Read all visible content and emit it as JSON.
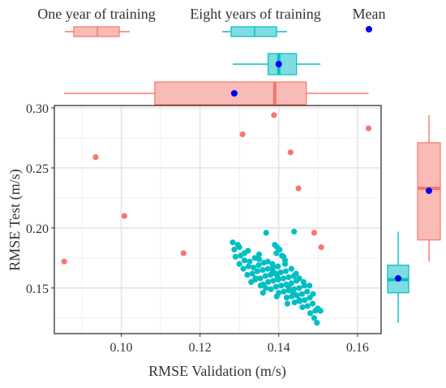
{
  "chart_data": {
    "type": "scatter",
    "xlabel": "RMSE Validation (m/s)",
    "ylabel": "RMSE Test (m/s)",
    "xlim": [
      0.083,
      0.166
    ],
    "ylim": [
      0.112,
      0.302
    ],
    "x_ticks": [
      0.1,
      0.12,
      0.14,
      0.16
    ],
    "x_tick_labels": [
      "0.10",
      "0.12",
      "0.14",
      "0.16"
    ],
    "y_ticks": [
      0.15,
      0.2,
      0.25,
      0.3
    ],
    "y_tick_labels": [
      "0.15",
      "0.20",
      "0.25",
      "0.30"
    ],
    "grid": true,
    "legend_position": "top",
    "legend": [
      {
        "label": "One year of training",
        "kind": "box"
      },
      {
        "label": "Eight years of training",
        "kind": "box"
      },
      {
        "label": "Mean",
        "kind": "point"
      }
    ],
    "colors": {
      "one_year": "#F8766D",
      "eight_years": "#00BFC4",
      "mean": "#0000EE"
    },
    "series": [
      {
        "name": "One year of training",
        "points": [
          [
            0.0855,
            0.172
          ],
          [
            0.0935,
            0.259
          ],
          [
            0.1008,
            0.21
          ],
          [
            0.1158,
            0.179
          ],
          [
            0.1308,
            0.278
          ],
          [
            0.1388,
            0.294
          ],
          [
            0.143,
            0.263
          ],
          [
            0.145,
            0.233
          ],
          [
            0.149,
            0.196
          ],
          [
            0.1508,
            0.184
          ],
          [
            0.1628,
            0.283
          ]
        ],
        "x_box": {
          "min": 0.0855,
          "q1": 0.1085,
          "median": 0.139,
          "q3": 0.147,
          "max": 0.1628,
          "mean": 0.1287
        },
        "y_box": {
          "min": 0.172,
          "q1": 0.19,
          "median": 0.233,
          "q3": 0.271,
          "max": 0.294,
          "mean": 0.231
        }
      },
      {
        "name": "Eight years of training",
        "points": [
          [
            0.1283,
            0.188
          ],
          [
            0.1296,
            0.186
          ],
          [
            0.1287,
            0.182
          ],
          [
            0.13,
            0.184
          ],
          [
            0.129,
            0.176
          ],
          [
            0.1303,
            0.177
          ],
          [
            0.1313,
            0.179
          ],
          [
            0.1322,
            0.181
          ],
          [
            0.13,
            0.17
          ],
          [
            0.1313,
            0.173
          ],
          [
            0.1326,
            0.172
          ],
          [
            0.1339,
            0.175
          ],
          [
            0.135,
            0.174
          ],
          [
            0.131,
            0.166
          ],
          [
            0.1323,
            0.168
          ],
          [
            0.1336,
            0.167
          ],
          [
            0.1349,
            0.169
          ],
          [
            0.1362,
            0.171
          ],
          [
            0.1372,
            0.172
          ],
          [
            0.1384,
            0.17
          ],
          [
            0.132,
            0.161
          ],
          [
            0.1333,
            0.162
          ],
          [
            0.1346,
            0.164
          ],
          [
            0.1359,
            0.165
          ],
          [
            0.1372,
            0.166
          ],
          [
            0.1385,
            0.167
          ],
          [
            0.1398,
            0.168
          ],
          [
            0.134,
            0.157
          ],
          [
            0.1353,
            0.158
          ],
          [
            0.1366,
            0.16
          ],
          [
            0.1379,
            0.161
          ],
          [
            0.1392,
            0.162
          ],
          [
            0.1405,
            0.163
          ],
          [
            0.1418,
            0.164
          ],
          [
            0.136,
            0.153
          ],
          [
            0.1373,
            0.155
          ],
          [
            0.1386,
            0.156
          ],
          [
            0.1399,
            0.157
          ],
          [
            0.1412,
            0.158
          ],
          [
            0.1425,
            0.159
          ],
          [
            0.1438,
            0.16
          ],
          [
            0.138,
            0.149
          ],
          [
            0.1393,
            0.151
          ],
          [
            0.1406,
            0.152
          ],
          [
            0.1419,
            0.153
          ],
          [
            0.1432,
            0.154
          ],
          [
            0.1445,
            0.156
          ],
          [
            0.14,
            0.146
          ],
          [
            0.1413,
            0.147
          ],
          [
            0.1426,
            0.148
          ],
          [
            0.1439,
            0.149
          ],
          [
            0.1452,
            0.15
          ],
          [
            0.1465,
            0.152
          ],
          [
            0.142,
            0.142
          ],
          [
            0.1433,
            0.143
          ],
          [
            0.1446,
            0.144
          ],
          [
            0.1459,
            0.145
          ],
          [
            0.1472,
            0.147
          ],
          [
            0.144,
            0.138
          ],
          [
            0.1453,
            0.139
          ],
          [
            0.1466,
            0.14
          ],
          [
            0.1479,
            0.142
          ],
          [
            0.146,
            0.134
          ],
          [
            0.1473,
            0.135
          ],
          [
            0.1486,
            0.137
          ],
          [
            0.1499,
            0.133
          ],
          [
            0.148,
            0.129
          ],
          [
            0.1493,
            0.131
          ],
          [
            0.1506,
            0.131
          ],
          [
            0.149,
            0.125
          ],
          [
            0.1497,
            0.121
          ],
          [
            0.1487,
            0.145
          ],
          [
            0.1478,
            0.152
          ],
          [
            0.1368,
            0.196
          ],
          [
            0.1439,
            0.197
          ],
          [
            0.139,
            0.186
          ],
          [
            0.1396,
            0.184
          ],
          [
            0.1402,
            0.182
          ],
          [
            0.1394,
            0.179
          ],
          [
            0.1408,
            0.177
          ],
          [
            0.1416,
            0.173
          ],
          [
            0.1412,
            0.176
          ],
          [
            0.135,
            0.178
          ],
          [
            0.1341,
            0.158
          ],
          [
            0.1354,
            0.152
          ],
          [
            0.133,
            0.155
          ],
          [
            0.136,
            0.146
          ],
          [
            0.1416,
            0.17
          ],
          [
            0.1432,
            0.166
          ],
          [
            0.1452,
            0.158
          ],
          [
            0.1444,
            0.162
          ],
          [
            0.1463,
            0.155
          ],
          [
            0.1385,
            0.164
          ],
          [
            0.1397,
            0.159
          ],
          [
            0.1425,
            0.151
          ],
          [
            0.1436,
            0.147
          ],
          [
            0.1452,
            0.14
          ],
          [
            0.1367,
            0.15
          ],
          [
            0.1422,
            0.137
          ],
          [
            0.1395,
            0.143
          ]
        ],
        "x_box": {
          "min": 0.1283,
          "q1": 0.1373,
          "median": 0.14,
          "q3": 0.1445,
          "max": 0.1506,
          "mean": 0.14
        },
        "y_box": {
          "min": 0.121,
          "q1": 0.146,
          "median": 0.157,
          "q3": 0.169,
          "max": 0.197,
          "mean": 0.158
        }
      }
    ]
  }
}
